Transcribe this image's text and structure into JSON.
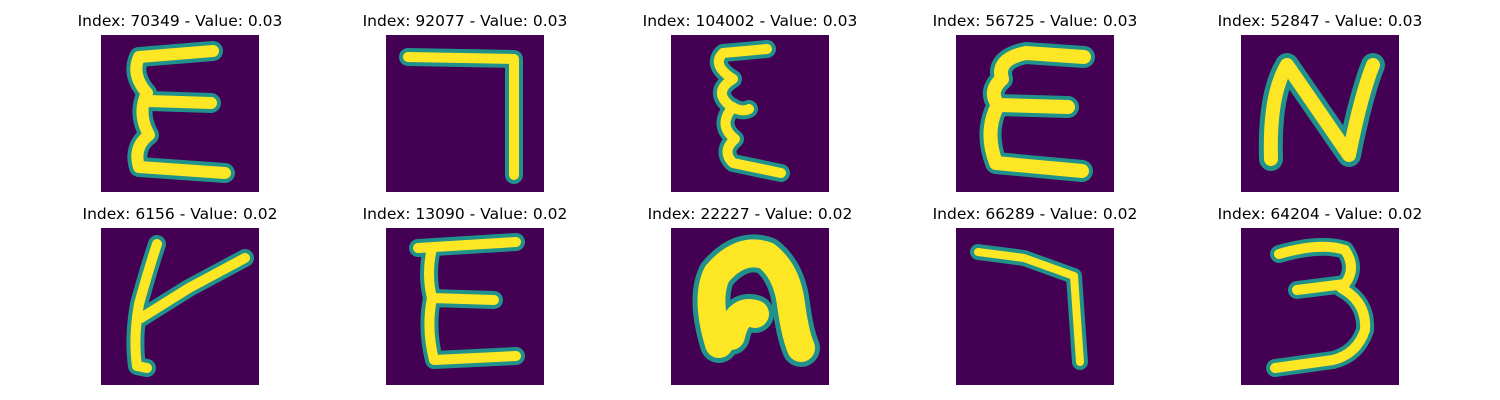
{
  "figure": {
    "panels": [
      {
        "title": "Index: 70349 - Value: 0.03",
        "glyph": "E-curly"
      },
      {
        "title": "Index: 92077 - Value: 0.03",
        "glyph": "7-shape"
      },
      {
        "title": "Index: 104002 - Value: 0.03",
        "glyph": "E-curly-narrow"
      },
      {
        "title": "Index: 56725 - Value: 0.03",
        "glyph": "E"
      },
      {
        "title": "Index: 52847 - Value: 0.03",
        "glyph": "N"
      },
      {
        "title": "Index: 6156 - Value: 0.02",
        "glyph": "Y-shape"
      },
      {
        "title": "Index: 13090 - Value: 0.02",
        "glyph": "E"
      },
      {
        "title": "Index: 22227 - Value: 0.02",
        "glyph": "n-shape"
      },
      {
        "title": "Index: 66289 - Value: 0.02",
        "glyph": "7-shape"
      },
      {
        "title": "Index: 64204 - Value: 0.02",
        "glyph": "3"
      }
    ],
    "colors": {
      "background": "#440154",
      "stroke_core": "#fde725",
      "stroke_edge": "#21918c"
    }
  }
}
